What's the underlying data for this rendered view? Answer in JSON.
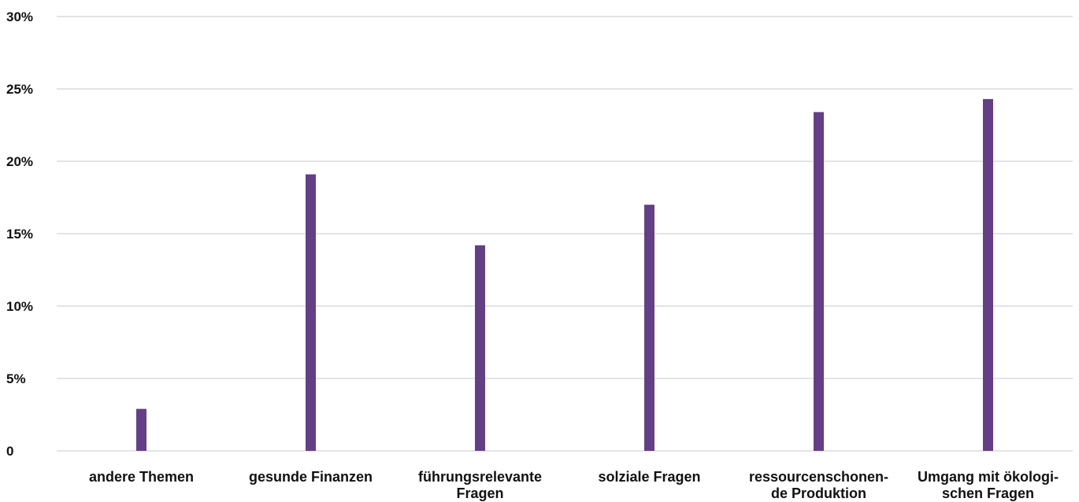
{
  "chart_data": {
    "type": "bar",
    "categories": [
      [
        "andere Themen"
      ],
      [
        "gesunde Finanzen"
      ],
      [
        "führungsrelevante",
        "Fragen"
      ],
      [
        "solziale Fragen"
      ],
      [
        "ressourcenschonen-",
        "de Produktion"
      ],
      [
        "Umgang mit ökologi-",
        "schen Fragen"
      ]
    ],
    "values": [
      2.9,
      19.1,
      14.2,
      17.0,
      23.4,
      24.3
    ],
    "ylim": [
      0,
      30
    ],
    "yticks": [
      0,
      5,
      10,
      15,
      20,
      25,
      30
    ],
    "ytick_labels": [
      "0",
      "5%",
      "10%",
      "15%",
      "20%",
      "25%",
      "30%"
    ],
    "bar_color": "#643f87",
    "grid_color": "#c8c8c8",
    "grid": true
  }
}
